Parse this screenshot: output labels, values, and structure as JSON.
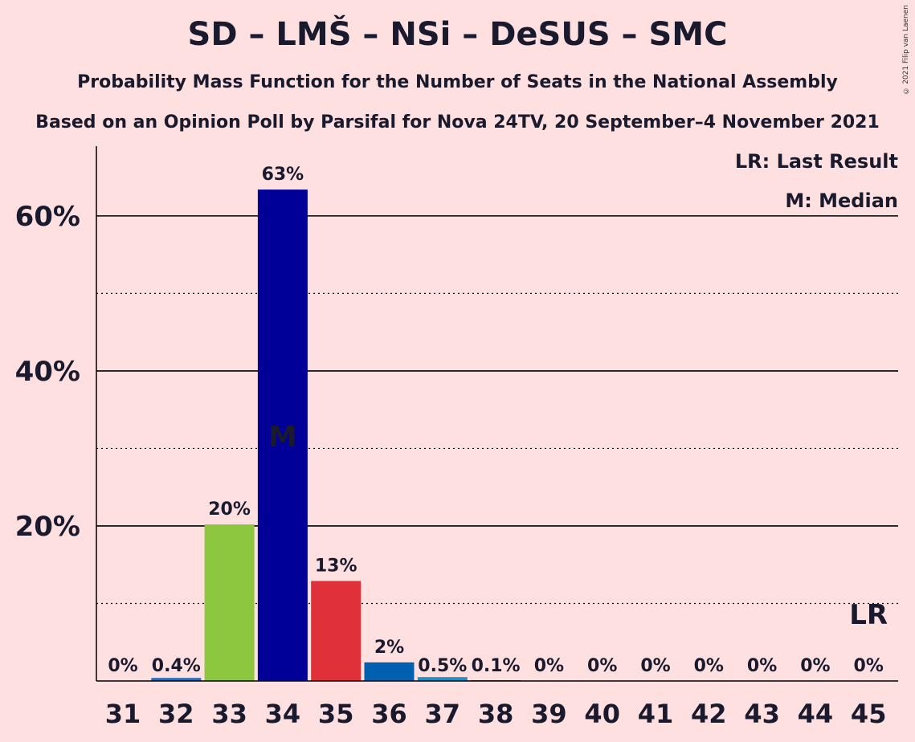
{
  "title": "SD – LMŠ – NSi – DeSUS – SMC",
  "subtitle1": "Probability Mass Function for the Number of Seats in the National Assembly",
  "subtitle2": "Based on an Opinion Poll by Parsifal for Nova 24TV, 20 September–4 November 2021",
  "copyright": "© 2021 Filip van Laenen",
  "legend": {
    "last_result": "LR: Last Result",
    "median": "M: Median"
  },
  "chart_data": {
    "type": "bar",
    "categories": [
      "31",
      "32",
      "33",
      "34",
      "35",
      "36",
      "37",
      "38",
      "39",
      "40",
      "41",
      "42",
      "43",
      "44",
      "45"
    ],
    "values": [
      0,
      0.4,
      20.2,
      63.4,
      12.9,
      2.4,
      0.5,
      0.1,
      0,
      0,
      0,
      0,
      0,
      0,
      0
    ],
    "data_labels": [
      "0%",
      "0.4%",
      "20%",
      "63%",
      "13%",
      "2%",
      "0.5%",
      "0.1%",
      "0%",
      "0%",
      "0%",
      "0%",
      "0%",
      "0%",
      "0%"
    ],
    "colors": [
      "#2a6ebb",
      "#2a6ebb",
      "#8dc63f",
      "#000099",
      "#e0303a",
      "#0060b0",
      "#1f8fc8",
      "#2a6ebb",
      "#2a6ebb",
      "#2a6ebb",
      "#2a6ebb",
      "#2a6ebb",
      "#2a6ebb",
      "#2a6ebb",
      "#2a6ebb"
    ],
    "y_ticks": [
      "20%",
      "40%",
      "60%"
    ],
    "y_tick_values": [
      20,
      40,
      60
    ],
    "ylim": [
      0,
      69
    ],
    "median_category": "34",
    "median_label": "M",
    "last_result_category": "45",
    "last_result_label": "LR",
    "grid": true
  }
}
